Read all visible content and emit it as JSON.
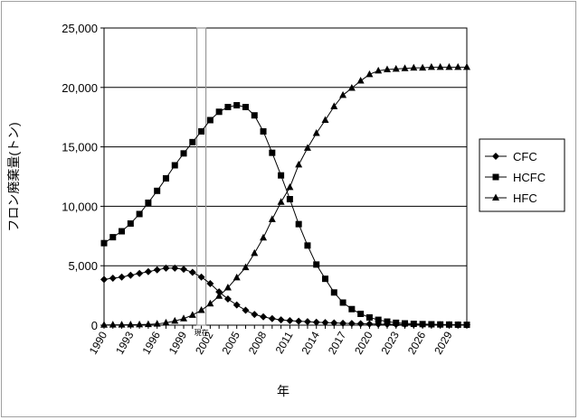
{
  "chart_data": {
    "type": "line",
    "ylabel": "フロン廃棄量(トン)",
    "xlabel": "年",
    "ylim": [
      0,
      25000
    ],
    "yticks": [
      "25,000",
      "20,000",
      "15,000",
      "10,000",
      "5,000",
      "0"
    ],
    "ytick_values": [
      25000,
      20000,
      15000,
      10000,
      5000,
      0
    ],
    "x_start": 1990,
    "x_end": 2031,
    "xtick_labels": [
      "1990",
      "1993",
      "1996",
      "1999",
      "2002",
      "2005",
      "2008",
      "2011",
      "2014",
      "2017",
      "2020",
      "2023",
      "2026",
      "2029"
    ],
    "xtick_values": [
      1990,
      1993,
      1996,
      1999,
      2002,
      2005,
      2008,
      2011,
      2014,
      2017,
      2020,
      2023,
      2026,
      2029
    ],
    "grid": "horizontal",
    "legend_position": "right",
    "annotation": {
      "label": "現在",
      "year": 2001
    },
    "x": [
      1990,
      1991,
      1992,
      1993,
      1994,
      1995,
      1996,
      1997,
      1998,
      1999,
      2000,
      2001,
      2002,
      2003,
      2004,
      2005,
      2006,
      2007,
      2008,
      2009,
      2010,
      2011,
      2012,
      2013,
      2014,
      2015,
      2016,
      2017,
      2018,
      2019,
      2020,
      2021,
      2022,
      2023,
      2024,
      2025,
      2026,
      2027,
      2028,
      2029,
      2030,
      2031
    ],
    "series": [
      {
        "name": "CFC",
        "marker": "diamond",
        "values": [
          3850,
          3950,
          4050,
          4200,
          4350,
          4500,
          4650,
          4800,
          4800,
          4700,
          4450,
          4050,
          3500,
          2800,
          2200,
          1700,
          1250,
          900,
          700,
          550,
          450,
          380,
          330,
          290,
          250,
          220,
          190,
          160,
          140,
          120,
          100,
          90,
          80,
          70,
          60,
          55,
          50,
          45,
          40,
          35,
          30,
          25
        ]
      },
      {
        "name": "HCFC",
        "marker": "square",
        "values": [
          6900,
          7400,
          7900,
          8550,
          9350,
          10300,
          11300,
          12350,
          13450,
          14450,
          15400,
          16300,
          17250,
          17950,
          18350,
          18500,
          18350,
          17650,
          16300,
          14500,
          12600,
          10600,
          8500,
          6700,
          5100,
          3900,
          2750,
          1900,
          1350,
          950,
          650,
          450,
          300,
          200,
          150,
          110,
          90,
          75,
          60,
          50,
          40,
          30
        ]
      },
      {
        "name": "HFC",
        "marker": "triangle",
        "values": [
          20,
          25,
          30,
          40,
          50,
          70,
          100,
          200,
          350,
          550,
          850,
          1250,
          1800,
          2450,
          3150,
          4000,
          4850,
          6050,
          7350,
          8900,
          10350,
          11600,
          13500,
          14900,
          16150,
          17250,
          18400,
          19350,
          19950,
          20550,
          21100,
          21400,
          21500,
          21550,
          21600,
          21650,
          21650,
          21700,
          21700,
          21700,
          21700,
          21700
        ]
      }
    ]
  }
}
